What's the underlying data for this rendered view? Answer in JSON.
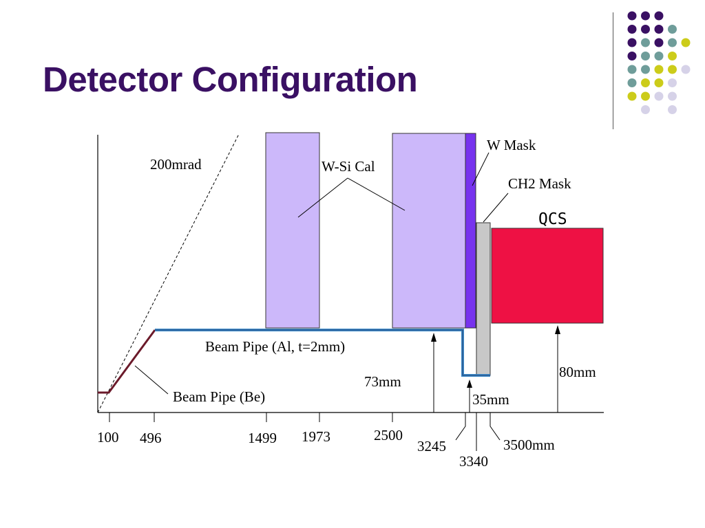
{
  "slide": {
    "title": "Detector Configuration"
  },
  "colors": {
    "title": "#3a1063",
    "dot_purple": "#3a1063",
    "dot_teal": "#6f9d9a",
    "dot_yellow": "#cccc1a",
    "dot_lavender": "#d6d2e8",
    "calorimeter": "#ccb8fa",
    "w_mask": "#7733ee",
    "ch2_mask": "#c8c8c8",
    "qcs": "#ee1144",
    "pipe_be": "#6b1a2a",
    "pipe_al": "#3d8ac8"
  },
  "decoration": {
    "dot_grid": [
      [
        "purple",
        "purple",
        "purple",
        "",
        ""
      ],
      [
        "purple",
        "purple",
        "purple",
        "teal",
        ""
      ],
      [
        "purple",
        "teal",
        "purple",
        "teal",
        "yellow"
      ],
      [
        "purple",
        "teal",
        "teal",
        "yellow",
        ""
      ],
      [
        "teal",
        "teal",
        "yellow",
        "yellow",
        "lavender"
      ],
      [
        "teal",
        "yellow",
        "yellow",
        "lavender",
        ""
      ],
      [
        "yellow",
        "yellow",
        "lavender",
        "lavender",
        ""
      ],
      [
        "",
        "lavender",
        "",
        "lavender",
        ""
      ]
    ]
  },
  "diagram": {
    "angle_label": "200mrad",
    "components": {
      "wsi_cal": "W-Si Cal",
      "w_mask": "W Mask",
      "ch2_mask": "CH2 Mask",
      "qcs": "QCS",
      "beam_pipe_al": "Beam Pipe (Al, t=2mm)",
      "beam_pipe_be": "Beam Pipe (Be)"
    },
    "radii": {
      "pipe_radius": "73mm",
      "gap": "35mm",
      "qcs_radius": "80mm"
    },
    "z_ticks": [
      "100",
      "496",
      "1499",
      "1973",
      "2500",
      "3245",
      "3340",
      "3500mm"
    ]
  }
}
